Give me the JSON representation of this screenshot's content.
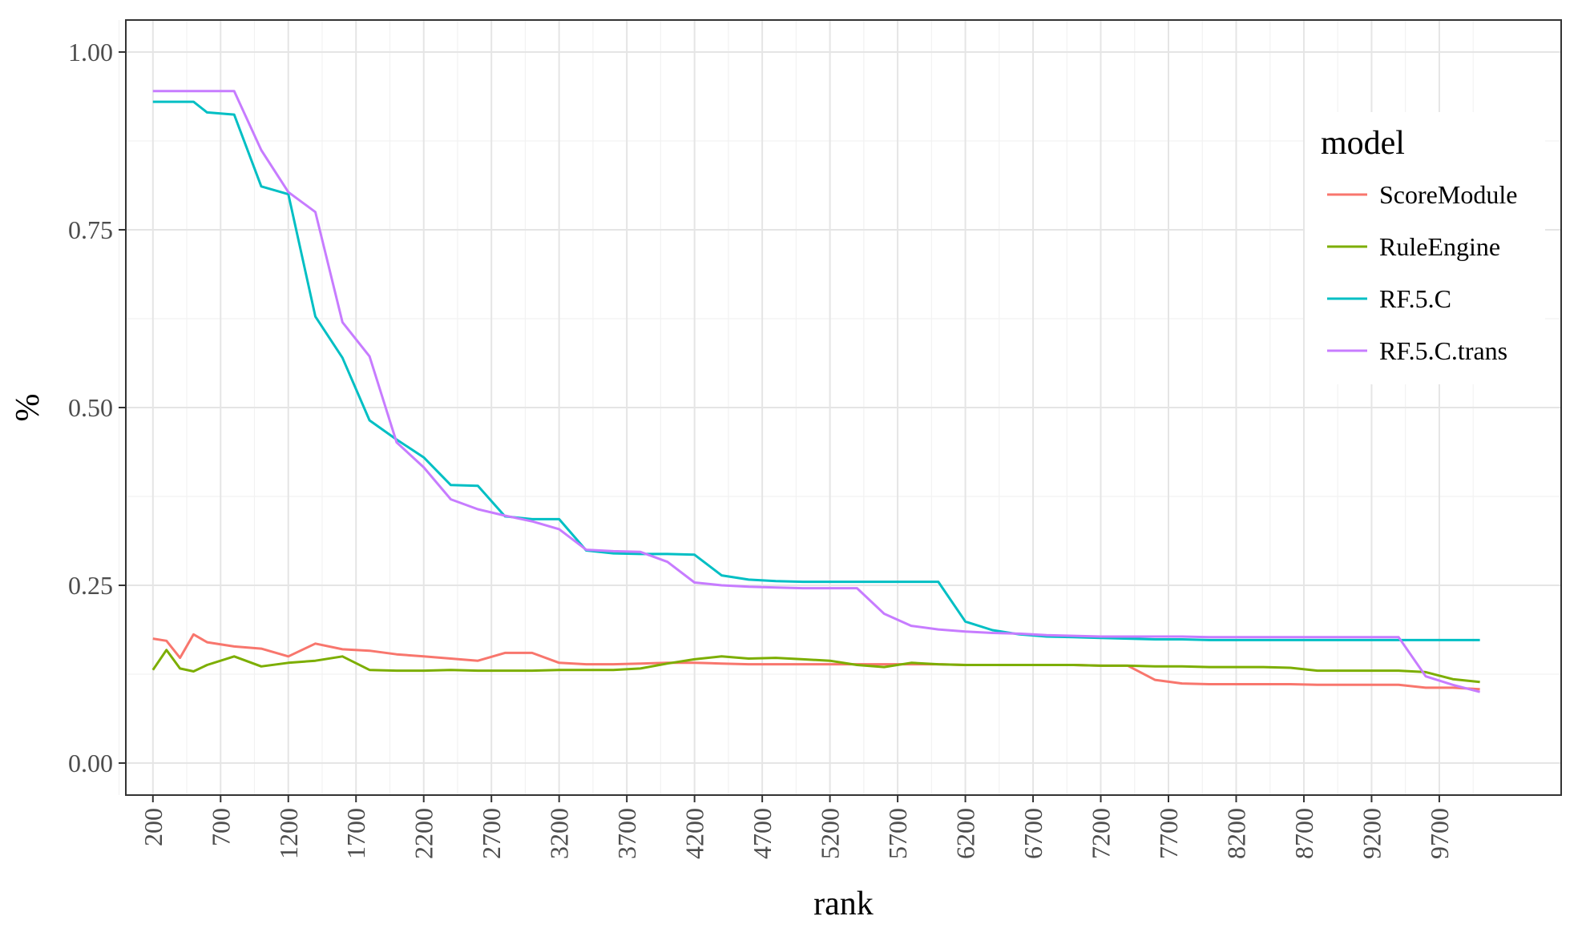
{
  "chart_data": {
    "type": "line",
    "xlabel": "rank",
    "ylabel": "%",
    "xlim": [
      0,
      10600
    ],
    "ylim": [
      -0.045,
      1.045
    ],
    "x_ticks": [
      200,
      700,
      1200,
      1700,
      2200,
      2700,
      3200,
      3700,
      4200,
      4700,
      5200,
      5700,
      6200,
      6700,
      7200,
      7700,
      8200,
      8700,
      9200,
      9700
    ],
    "x_tick_labels": [
      "200",
      "700",
      "1200",
      "1700",
      "2200",
      "2700",
      "3200",
      "3700",
      "4200",
      "4700",
      "5200",
      "5700",
      "6200",
      "6700",
      "7200",
      "7700",
      "8200",
      "8700",
      "9200",
      "9700"
    ],
    "y_ticks": [
      0,
      0.25,
      0.5,
      0.75,
      1.0
    ],
    "y_tick_labels": [
      "0.00",
      "0.25",
      "0.50",
      "0.75",
      "1.00"
    ],
    "grid": true,
    "legend": {
      "title": "model",
      "position": "right"
    },
    "series": [
      {
        "name": "ScoreModule",
        "color": "#F8766D",
        "x": [
          200,
          300,
          400,
          500,
          600,
          800,
          1000,
          1200,
          1400,
          1600,
          1800,
          2000,
          2200,
          2400,
          2600,
          2800,
          3000,
          3200,
          3400,
          3600,
          3800,
          4000,
          4200,
          4400,
          4600,
          4800,
          5000,
          5200,
          5400,
          5600,
          5800,
          6000,
          6200,
          6400,
          6600,
          6800,
          7000,
          7200,
          7400,
          7600,
          7800,
          8000,
          8200,
          8400,
          8600,
          8800,
          9000,
          9200,
          9400,
          9600,
          9800,
          10000
        ],
        "y": [
          0.175,
          0.172,
          0.148,
          0.181,
          0.17,
          0.164,
          0.161,
          0.15,
          0.168,
          0.16,
          0.158,
          0.153,
          0.15,
          0.147,
          0.144,
          0.155,
          0.155,
          0.141,
          0.139,
          0.139,
          0.14,
          0.141,
          0.141,
          0.14,
          0.139,
          0.139,
          0.139,
          0.139,
          0.139,
          0.139,
          0.139,
          0.139,
          0.138,
          0.138,
          0.138,
          0.138,
          0.138,
          0.137,
          0.137,
          0.117,
          0.112,
          0.111,
          0.111,
          0.111,
          0.111,
          0.11,
          0.11,
          0.11,
          0.11,
          0.106,
          0.106,
          0.104
        ]
      },
      {
        "name": "RuleEngine",
        "color": "#7CAE00",
        "x": [
          200,
          300,
          400,
          500,
          600,
          800,
          1000,
          1200,
          1400,
          1600,
          1800,
          2000,
          2200,
          2400,
          2600,
          2800,
          3000,
          3200,
          3400,
          3600,
          3800,
          4000,
          4200,
          4400,
          4600,
          4800,
          5000,
          5200,
          5400,
          5600,
          5800,
          6000,
          6200,
          6400,
          6600,
          6800,
          7000,
          7200,
          7400,
          7600,
          7800,
          8000,
          8200,
          8400,
          8600,
          8800,
          9000,
          9200,
          9400,
          9600,
          9800,
          10000
        ],
        "y": [
          0.131,
          0.159,
          0.133,
          0.129,
          0.138,
          0.15,
          0.136,
          0.141,
          0.144,
          0.15,
          0.131,
          0.13,
          0.13,
          0.131,
          0.13,
          0.13,
          0.13,
          0.131,
          0.131,
          0.131,
          0.133,
          0.14,
          0.146,
          0.15,
          0.147,
          0.148,
          0.146,
          0.144,
          0.138,
          0.135,
          0.141,
          0.139,
          0.138,
          0.138,
          0.138,
          0.138,
          0.138,
          0.137,
          0.137,
          0.136,
          0.136,
          0.135,
          0.135,
          0.135,
          0.134,
          0.13,
          0.13,
          0.13,
          0.13,
          0.128,
          0.118,
          0.114
        ]
      },
      {
        "name": "RF.5.C",
        "color": "#00BFC4",
        "x": [
          200,
          300,
          400,
          500,
          600,
          800,
          1000,
          1200,
          1400,
          1600,
          1800,
          2000,
          2200,
          2400,
          2600,
          2800,
          3000,
          3200,
          3400,
          3600,
          3800,
          4000,
          4200,
          4400,
          4600,
          4800,
          5000,
          5200,
          5400,
          5600,
          5800,
          6000,
          6200,
          6400,
          6600,
          6800,
          7000,
          7200,
          7400,
          7600,
          7800,
          8000,
          8200,
          8400,
          8600,
          8800,
          9000,
          9200,
          9400,
          9600,
          9800,
          10000
        ],
        "y": [
          0.93,
          0.93,
          0.93,
          0.93,
          0.915,
          0.912,
          0.811,
          0.8,
          0.628,
          0.57,
          0.482,
          0.455,
          0.43,
          0.391,
          0.39,
          0.347,
          0.343,
          0.343,
          0.299,
          0.295,
          0.294,
          0.294,
          0.293,
          0.264,
          0.258,
          0.256,
          0.255,
          0.255,
          0.255,
          0.255,
          0.255,
          0.255,
          0.199,
          0.187,
          0.181,
          0.178,
          0.177,
          0.176,
          0.175,
          0.174,
          0.174,
          0.173,
          0.173,
          0.173,
          0.173,
          0.173,
          0.173,
          0.173,
          0.173,
          0.173,
          0.173,
          0.173
        ]
      },
      {
        "name": "RF.5.C.trans",
        "color": "#C77CFF",
        "x": [
          200,
          300,
          400,
          500,
          600,
          800,
          1000,
          1200,
          1400,
          1600,
          1800,
          2000,
          2200,
          2400,
          2600,
          2800,
          3000,
          3200,
          3400,
          3600,
          3800,
          4000,
          4200,
          4400,
          4600,
          4800,
          5000,
          5200,
          5400,
          5600,
          5800,
          6000,
          6200,
          6400,
          6600,
          6800,
          7000,
          7200,
          7400,
          7600,
          7800,
          8000,
          8200,
          8400,
          8600,
          8800,
          9000,
          9200,
          9400,
          9600,
          9800,
          10000
        ],
        "y": [
          0.945,
          0.945,
          0.945,
          0.945,
          0.945,
          0.945,
          0.862,
          0.803,
          0.775,
          0.62,
          0.572,
          0.451,
          0.416,
          0.371,
          0.357,
          0.348,
          0.34,
          0.329,
          0.3,
          0.298,
          0.297,
          0.283,
          0.254,
          0.25,
          0.248,
          0.247,
          0.246,
          0.246,
          0.246,
          0.21,
          0.193,
          0.188,
          0.185,
          0.183,
          0.182,
          0.18,
          0.179,
          0.178,
          0.178,
          0.178,
          0.178,
          0.177,
          0.177,
          0.177,
          0.177,
          0.177,
          0.177,
          0.177,
          0.177,
          0.122,
          0.11,
          0.1
        ]
      }
    ]
  }
}
